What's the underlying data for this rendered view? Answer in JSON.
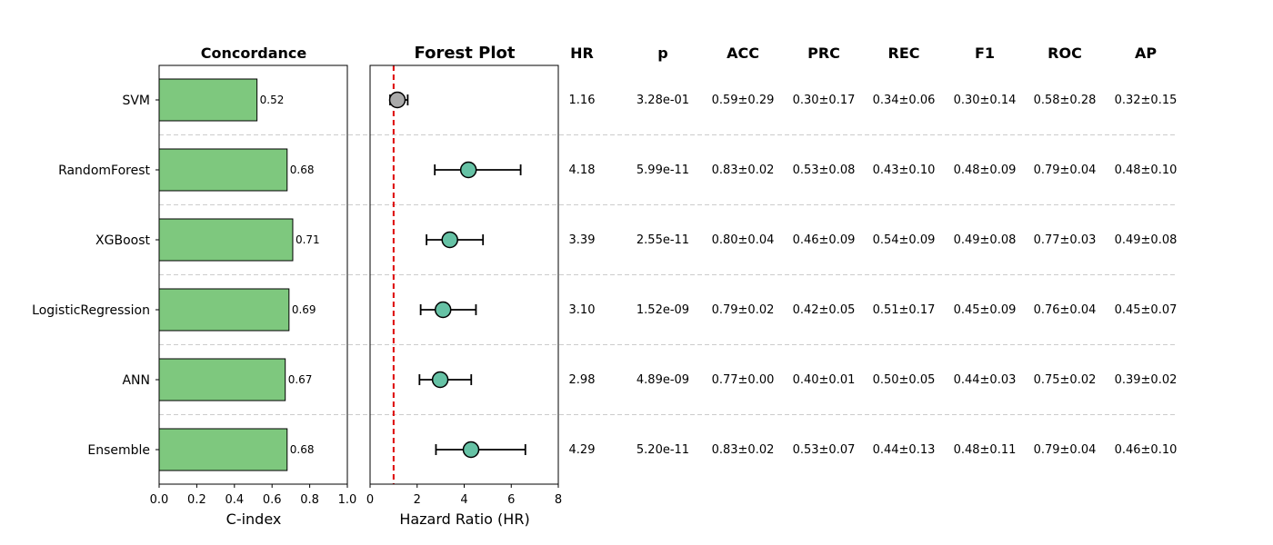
{
  "chart_data": [
    {
      "type": "bar",
      "orientation": "horizontal",
      "title": "Concordance",
      "xlabel": "C-index",
      "xlim": [
        0,
        1.0
      ],
      "xticks": [
        "0.0",
        "0.2",
        "0.4",
        "0.6",
        "0.8",
        "1.0"
      ],
      "categories": [
        "SVM",
        "RandomForest",
        "XGBoost",
        "LogisticRegression",
        "ANN",
        "Ensemble"
      ],
      "values": [
        0.52,
        0.68,
        0.71,
        0.69,
        0.67,
        0.68
      ],
      "value_labels": [
        "0.52",
        "0.68",
        "0.71",
        "0.69",
        "0.67",
        "0.68"
      ],
      "bar_color": "#7ec87e"
    },
    {
      "type": "scatter",
      "subtype": "forest",
      "title": "Forest Plot",
      "xlabel": "Hazard Ratio (HR)",
      "xlim": [
        0,
        8
      ],
      "xticks": [
        "0",
        "2",
        "4",
        "6",
        "8"
      ],
      "reference_line": 1,
      "reference_color": "#dd0000",
      "categories": [
        "SVM",
        "RandomForest",
        "XGBoost",
        "LogisticRegression",
        "ANN",
        "Ensemble"
      ],
      "hr": [
        1.16,
        4.18,
        3.39,
        3.1,
        2.98,
        4.29
      ],
      "ci_low": [
        0.85,
        2.75,
        2.4,
        2.15,
        2.1,
        2.8
      ],
      "ci_high": [
        1.6,
        6.4,
        4.8,
        4.5,
        4.3,
        6.6
      ],
      "marker_colors": [
        "#aaaaaa",
        "#66c2a5",
        "#66c2a5",
        "#66c2a5",
        "#66c2a5",
        "#66c2a5"
      ]
    },
    {
      "type": "table",
      "columns": [
        "HR",
        "p",
        "ACC",
        "PRC",
        "REC",
        "F1",
        "ROC",
        "AP"
      ],
      "rows": [
        [
          "1.16",
          "3.28e-01",
          "0.59±0.29",
          "0.30±0.17",
          "0.34±0.06",
          "0.30±0.14",
          "0.58±0.28",
          "0.32±0.15"
        ],
        [
          "4.18",
          "5.99e-11",
          "0.83±0.02",
          "0.53±0.08",
          "0.43±0.10",
          "0.48±0.09",
          "0.79±0.04",
          "0.48±0.10"
        ],
        [
          "3.39",
          "2.55e-11",
          "0.80±0.04",
          "0.46±0.09",
          "0.54±0.09",
          "0.49±0.08",
          "0.77±0.03",
          "0.49±0.08"
        ],
        [
          "3.10",
          "1.52e-09",
          "0.79±0.02",
          "0.42±0.05",
          "0.51±0.17",
          "0.45±0.09",
          "0.76±0.04",
          "0.45±0.07"
        ],
        [
          "2.98",
          "4.89e-09",
          "0.77±0.00",
          "0.40±0.01",
          "0.50±0.05",
          "0.44±0.03",
          "0.75±0.02",
          "0.39±0.02"
        ],
        [
          "4.29",
          "5.20e-11",
          "0.83±0.02",
          "0.53±0.07",
          "0.44±0.13",
          "0.48±0.11",
          "0.79±0.04",
          "0.46±0.10"
        ]
      ]
    }
  ]
}
